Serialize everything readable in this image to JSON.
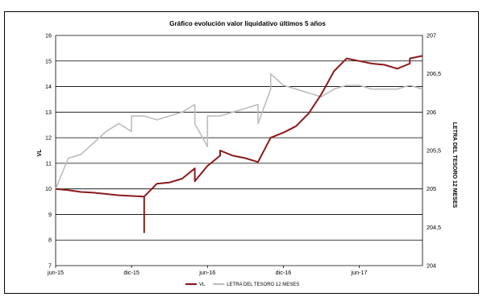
{
  "chart_data": {
    "type": "line",
    "title": "Gráfico evolución valor liquidativo últimos 5 años",
    "ylabel": "VL",
    "y2label": "LETRA DEL TESORO 12 MESES",
    "ylim": [
      7,
      16
    ],
    "y2lim": [
      204,
      207
    ],
    "yticks": [
      "7",
      "8",
      "9",
      "10",
      "11",
      "12",
      "13",
      "14",
      "15",
      "16"
    ],
    "y2ticks": [
      "204",
      "204,5",
      "205",
      "205,5",
      "206",
      "206,5",
      "207"
    ],
    "xticks": [
      {
        "label": "jun-15",
        "x": "2015-06"
      },
      {
        "label": "dic-15",
        "x": "2015-12"
      },
      {
        "label": "jun-16",
        "x": "2016-06"
      },
      {
        "label": "dic-16",
        "x": "2016-12"
      },
      {
        "label": "jun-17",
        "x": "2017-06"
      }
    ],
    "xlim": [
      "2015-06",
      "2017-11"
    ],
    "grid": true,
    "legend_position": "bottom",
    "series": [
      {
        "name": "VL",
        "axis": "left",
        "color": "#8B1A1A",
        "x": [
          "2015-06",
          "2015-07",
          "2015-08",
          "2015-09",
          "2015-10",
          "2015-11",
          "2016-01",
          "2016-01",
          "2016-01",
          "2016-01",
          "2016-02",
          "2016-03",
          "2016-04",
          "2016-05",
          "2016-05",
          "2016-06",
          "2016-07",
          "2016-07",
          "2016-08",
          "2016-09",
          "2016-10",
          "2016-10",
          "2016-11",
          "2016-12",
          "2017-01",
          "2017-02",
          "2017-03",
          "2017-04",
          "2017-05",
          "2017-06",
          "2017-07",
          "2017-08",
          "2017-09",
          "2017-10",
          "2017-10",
          "2017-11"
        ],
        "values": [
          10.0,
          9.95,
          9.88,
          9.85,
          9.8,
          9.75,
          9.7,
          8.3,
          8.7,
          9.7,
          10.2,
          10.25,
          10.4,
          10.8,
          10.3,
          10.9,
          11.3,
          11.5,
          11.3,
          11.2,
          11.05,
          11.05,
          12.0,
          12.2,
          12.45,
          12.95,
          13.7,
          14.6,
          15.1,
          15.0,
          14.9,
          14.85,
          14.7,
          14.9,
          15.1,
          15.2
        ]
      },
      {
        "name": "LETRA DEL TESORO 12 MESES",
        "axis": "right",
        "color": "#BDBDBD",
        "x": [
          "2015-06",
          "2015-07",
          "2015-08",
          "2015-09",
          "2015-10",
          "2015-11",
          "2015-12",
          "2015-12",
          "2016-01",
          "2016-02",
          "2016-03",
          "2016-04",
          "2016-05",
          "2016-05",
          "2016-06",
          "2016-06",
          "2016-07",
          "2016-08",
          "2016-09",
          "2016-10",
          "2016-10",
          "2016-11",
          "2016-11",
          "2016-12",
          "2017-01",
          "2017-02",
          "2017-03",
          "2017-04",
          "2017-05",
          "2017-06",
          "2017-07",
          "2017-08",
          "2017-09",
          "2017-10",
          "2017-11"
        ],
        "values": [
          205.0,
          205.4,
          205.45,
          205.6,
          205.75,
          205.85,
          205.75,
          205.95,
          205.95,
          205.9,
          205.95,
          206.0,
          206.1,
          205.85,
          205.55,
          205.95,
          205.95,
          206.0,
          206.05,
          206.1,
          205.85,
          206.3,
          206.5,
          206.35,
          206.3,
          206.25,
          206.2,
          206.3,
          206.35,
          206.35,
          206.3,
          206.3,
          206.3,
          206.35,
          206.3
        ]
      }
    ]
  }
}
